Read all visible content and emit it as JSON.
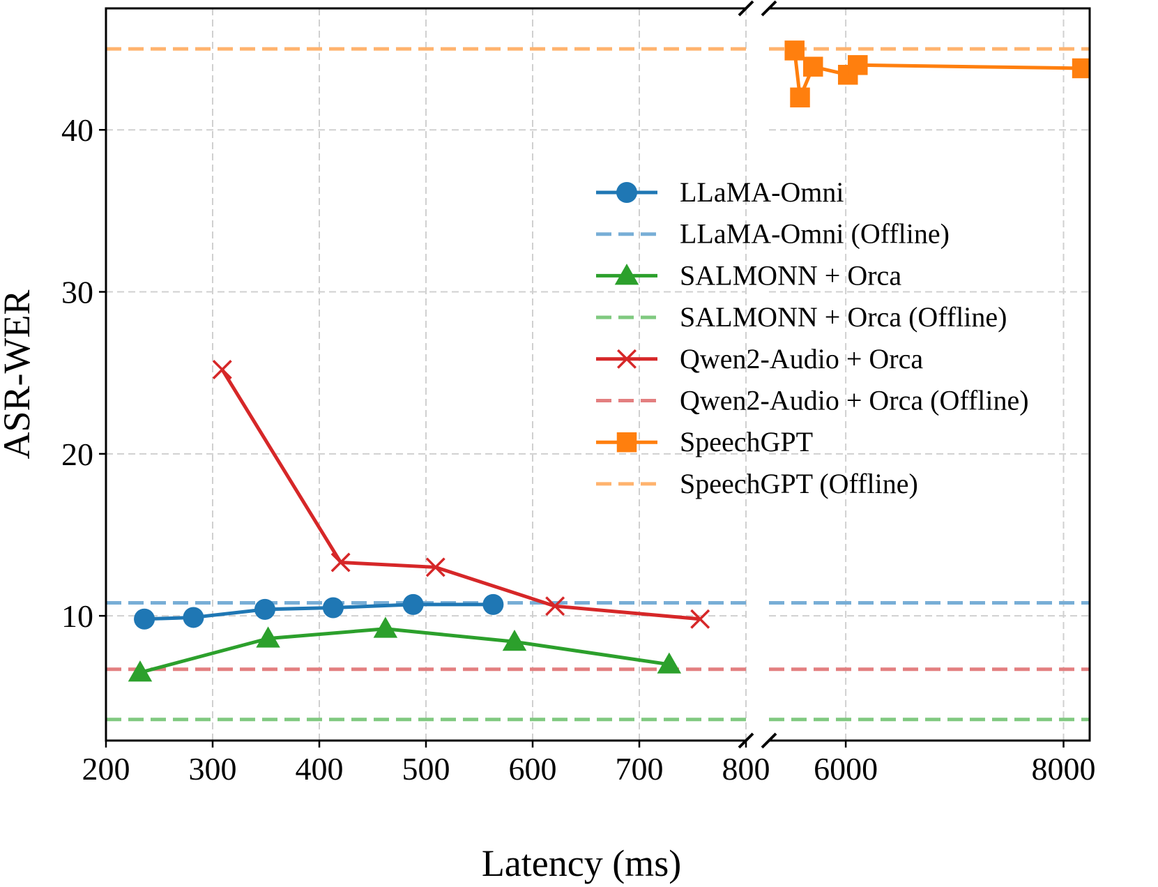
{
  "chart_data": {
    "type": "line",
    "title": "",
    "xlabel": "Latency (ms)",
    "ylabel": "ASR-WER",
    "ylim": [
      2.3,
      47.5
    ],
    "y_ticks": [
      10,
      20,
      30,
      40
    ],
    "y_tick_labels": [
      "10",
      "20",
      "30",
      "40"
    ],
    "broken_x_axis": true,
    "x_segments": [
      {
        "xlim": [
          200,
          800
        ],
        "ticks": [
          200,
          300,
          400,
          500,
          600,
          700,
          800
        ],
        "tick_labels": [
          "200",
          "300",
          "400",
          "500",
          "600",
          "700",
          "800"
        ]
      },
      {
        "xlim": [
          5295,
          8240
        ],
        "ticks": [
          6000,
          8000
        ],
        "tick_labels": [
          "6000",
          "8000"
        ]
      }
    ],
    "grid": true,
    "legend_position": "center-right",
    "series": [
      {
        "name": "LLaMA-Omni",
        "style": "solid",
        "marker": "circle",
        "color": "#1f77b4",
        "x": [
          236,
          282,
          349,
          413,
          488,
          563
        ],
        "y": [
          9.8,
          9.9,
          10.4,
          10.5,
          10.7,
          10.7
        ]
      },
      {
        "name": "LLaMA-Omni (Offline)",
        "style": "dashed",
        "color": "#78aed6",
        "constant": 10.8
      },
      {
        "name": "SALMONN + Orca",
        "style": "solid",
        "marker": "triangle",
        "color": "#2ca02c",
        "x": [
          232,
          352,
          462,
          583,
          728
        ],
        "y": [
          6.5,
          8.6,
          9.2,
          8.4,
          7.0
        ]
      },
      {
        "name": "SALMONN + Orca (Offline)",
        "style": "dashed",
        "color": "#80c980",
        "constant": 3.6
      },
      {
        "name": "Qwen2-Audio + Orca",
        "style": "solid",
        "marker": "x",
        "color": "#d62728",
        "x": [
          309,
          420,
          509,
          621,
          757
        ],
        "y": [
          25.2,
          13.3,
          13.0,
          10.6,
          9.8
        ]
      },
      {
        "name": "Qwen2-Audio + Orca (Offline)",
        "style": "dashed",
        "color": "#e37f80",
        "constant": 6.7
      },
      {
        "name": "SpeechGPT",
        "style": "solid",
        "marker": "square",
        "color": "#ff7f0e",
        "x": [
          5530,
          5580,
          5700,
          6020,
          6110,
          8170
        ],
        "y": [
          44.9,
          42.0,
          43.9,
          43.4,
          44.0,
          43.8
        ]
      },
      {
        "name": "SpeechGPT (Offline)",
        "style": "dashed",
        "color": "#ffb36e",
        "constant": 45.0
      }
    ]
  }
}
